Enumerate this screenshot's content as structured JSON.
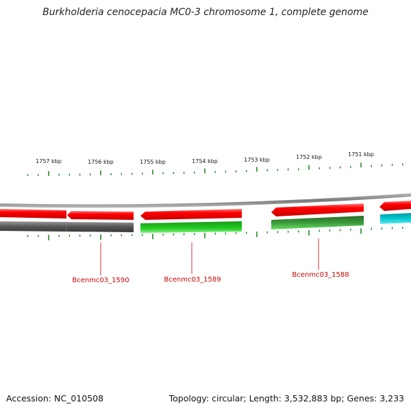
{
  "title": "Burkholderia cenocepacia MC0-3 chromosome 1, complete genome",
  "ruler": {
    "tick_labels": [
      "1757 kbp",
      "1756 kbp",
      "1755 kbp",
      "1754 kbp",
      "1753 kbp",
      "1752 kbp",
      "1751 kbp"
    ]
  },
  "gene_labels": [
    "Bcenmc03_1590",
    "Bcenmc03_1589",
    "Bcenmc03_1588"
  ],
  "colors": {
    "forward_cds": "#ff0000",
    "gene_gray": "#555555",
    "gene_green": "#22cc22",
    "gene_darkgreen": "#2a8a2a",
    "gene_cyan": "#00c8d0",
    "tick": "#228822",
    "label": "#cc0000",
    "backbone": "#808080"
  },
  "footer": {
    "accession": "Accession: NC_010508",
    "info": "Topology: circular; Length: 3,532,883 bp; Genes: 3,233"
  }
}
